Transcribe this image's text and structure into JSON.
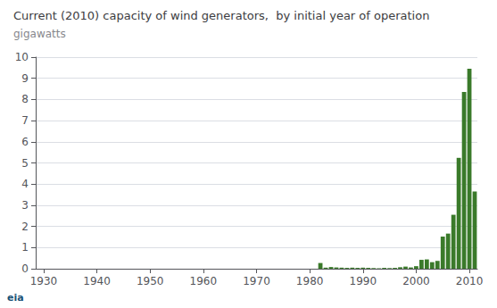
{
  "chart_data": {
    "type": "bar",
    "title": "Current (2010) capacity of wind generators,  by initial year of operation",
    "subtitle": "gigawatts",
    "annotations": [
      "eia"
    ],
    "x": [
      1929,
      1930,
      1931,
      1932,
      1933,
      1934,
      1935,
      1936,
      1937,
      1938,
      1939,
      1940,
      1941,
      1942,
      1943,
      1944,
      1945,
      1946,
      1947,
      1948,
      1949,
      1950,
      1951,
      1952,
      1953,
      1954,
      1955,
      1956,
      1957,
      1958,
      1959,
      1960,
      1961,
      1962,
      1963,
      1964,
      1965,
      1966,
      1967,
      1968,
      1969,
      1970,
      1971,
      1972,
      1973,
      1974,
      1975,
      1976,
      1977,
      1978,
      1979,
      1980,
      1981,
      1982,
      1983,
      1984,
      1985,
      1986,
      1987,
      1988,
      1989,
      1990,
      1991,
      1992,
      1993,
      1994,
      1995,
      1996,
      1997,
      1998,
      1999,
      2000,
      2001,
      2002,
      2003,
      2004,
      2005,
      2006,
      2007,
      2008,
      2009,
      2010,
      2011
    ],
    "values": [
      0,
      0,
      0,
      0,
      0,
      0,
      0,
      0,
      0,
      0,
      0,
      0,
      0,
      0,
      0,
      0,
      0,
      0,
      0,
      0,
      0,
      0,
      0,
      0,
      0,
      0,
      0,
      0,
      0,
      0,
      0,
      0,
      0,
      0,
      0,
      0,
      0,
      0,
      0,
      0,
      0,
      0,
      0,
      0,
      0,
      0,
      0,
      0,
      0,
      0,
      0,
      0,
      0,
      0.27,
      0.05,
      0.08,
      0.06,
      0.05,
      0.04,
      0.05,
      0.04,
      0.05,
      0.04,
      0.03,
      0.02,
      0.04,
      0.03,
      0.04,
      0.07,
      0.1,
      0.06,
      0.12,
      0.42,
      0.44,
      0.31,
      0.37,
      1.52,
      1.66,
      2.55,
      5.24,
      8.35,
      9.45,
      3.65
    ],
    "color": "#3a7a2a",
    "xlim": [
      1928.5,
      2011.5
    ],
    "xticks": [
      1930,
      1940,
      1950,
      1960,
      1970,
      1980,
      1990,
      2000,
      2010
    ],
    "ylim": [
      0,
      10
    ],
    "yticks": [
      0,
      1,
      2,
      3,
      4,
      5,
      6,
      7,
      8,
      9,
      10
    ],
    "grid": true
  }
}
